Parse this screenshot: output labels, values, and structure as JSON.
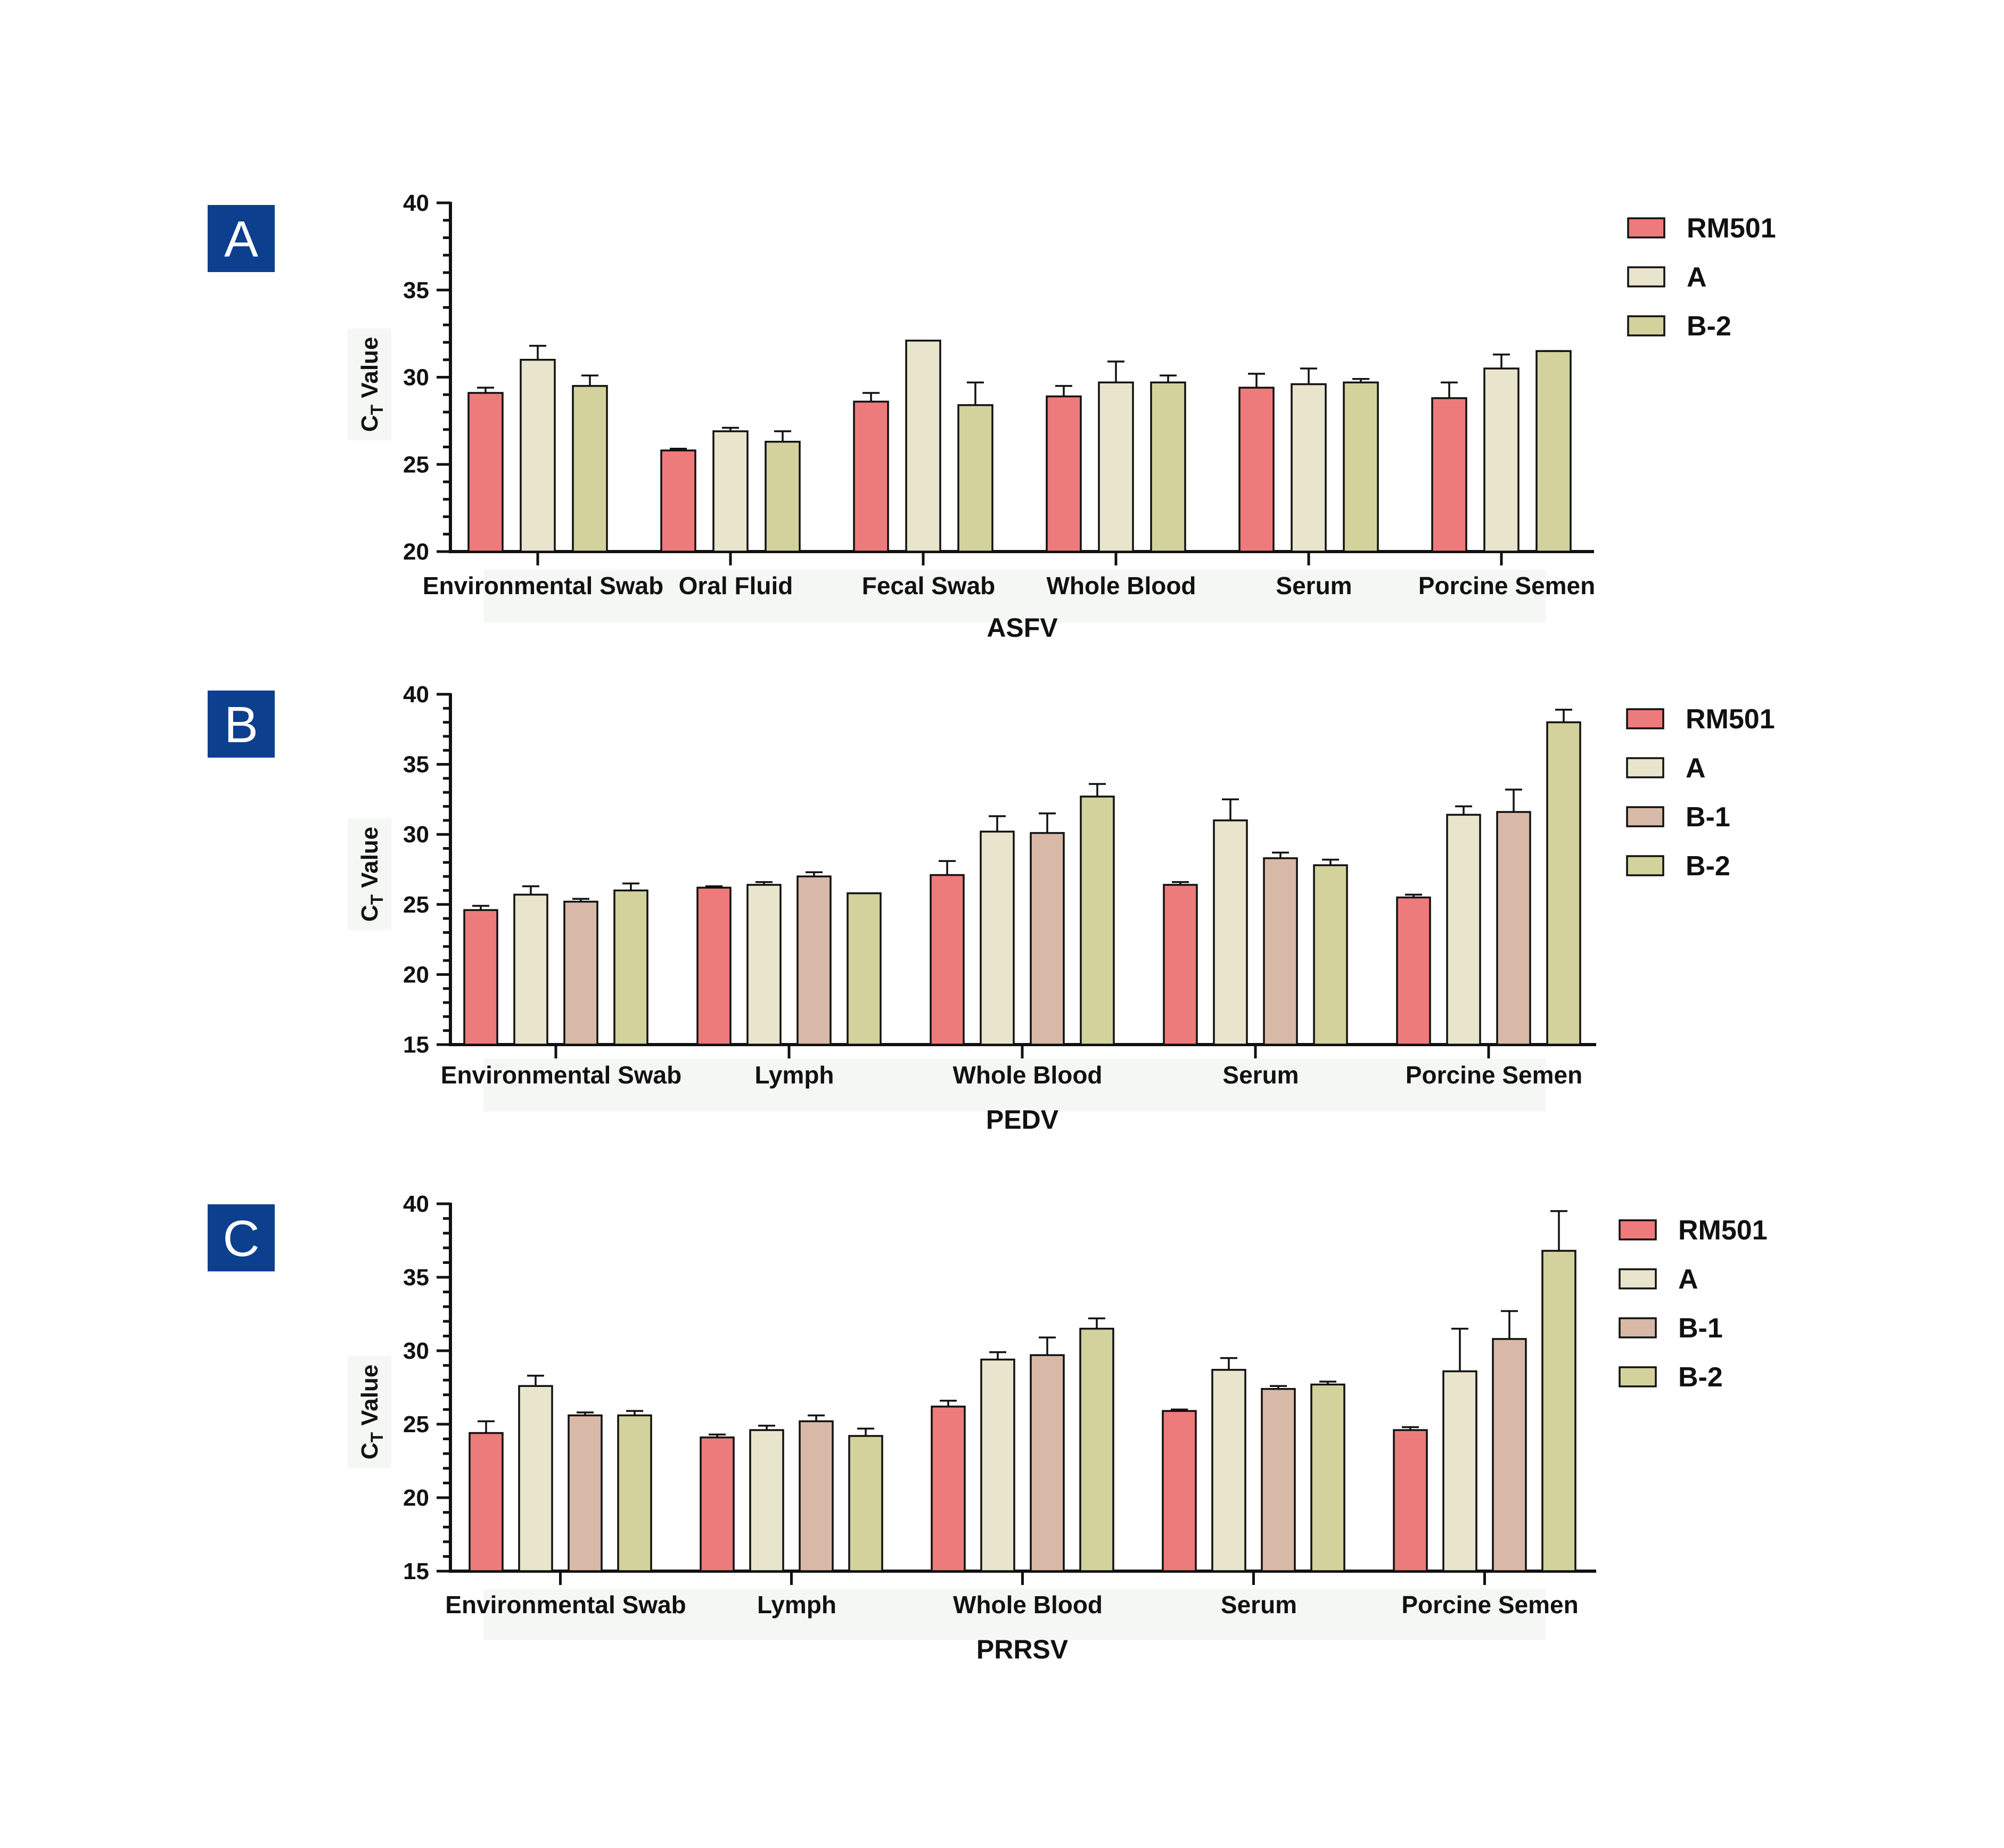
{
  "colors": {
    "RM501": "#ee7b7b",
    "A": "#e9e4cc",
    "B-1": "#d8b9a7",
    "B-2": "#d3d29c",
    "panel_badge": "#0d3f8f",
    "stroke": "#111111"
  },
  "ylabel_main": "C",
  "ylabel_sub": "T",
  "ylabel_rest": " Value",
  "chart_data": [
    {
      "type": "bar",
      "panel": "A",
      "xlabel": "ASFV",
      "ylim": [
        20,
        40
      ],
      "yticks": [
        "20",
        "25",
        "30",
        "35",
        "40"
      ],
      "categories": [
        "Environmental Swab",
        "Oral Fluid",
        "Fecal Swab",
        "Whole Blood",
        "Serum",
        "Porcine Semen"
      ],
      "series": [
        {
          "name": "RM501",
          "values": [
            29.1,
            25.8,
            28.6,
            28.9,
            29.4,
            28.8
          ],
          "errors": [
            0.3,
            0.1,
            0.5,
            0.6,
            0.8,
            0.9
          ]
        },
        {
          "name": "A",
          "values": [
            31.0,
            26.9,
            32.1,
            29.7,
            29.6,
            30.5
          ],
          "errors": [
            0.8,
            0.2,
            0.05,
            1.2,
            0.9,
            0.8
          ]
        },
        {
          "name": "B-2",
          "values": [
            29.5,
            26.3,
            28.4,
            29.7,
            29.7,
            31.5
          ],
          "errors": [
            0.6,
            0.6,
            1.3,
            0.4,
            0.2,
            0.05
          ]
        }
      ]
    },
    {
      "type": "bar",
      "panel": "B",
      "xlabel": "PEDV",
      "ylim": [
        15,
        40
      ],
      "yticks": [
        "15",
        "20",
        "25",
        "30",
        "35",
        "40"
      ],
      "categories": [
        "Environmental Swab",
        "Lymph",
        "Whole Blood",
        "Serum",
        "Porcine Semen"
      ],
      "series": [
        {
          "name": "RM501",
          "values": [
            24.6,
            26.2,
            27.1,
            26.4,
            25.5
          ],
          "errors": [
            0.3,
            0.1,
            1.0,
            0.2,
            0.2
          ]
        },
        {
          "name": "A",
          "values": [
            25.7,
            26.4,
            30.2,
            31.0,
            31.4
          ],
          "errors": [
            0.6,
            0.2,
            1.1,
            1.5,
            0.6
          ]
        },
        {
          "name": "B-1",
          "values": [
            25.2,
            27.0,
            30.1,
            28.3,
            31.6
          ],
          "errors": [
            0.2,
            0.3,
            1.4,
            0.4,
            1.6
          ]
        },
        {
          "name": "B-2",
          "values": [
            26.0,
            25.8,
            32.7,
            27.8,
            38.0
          ],
          "errors": [
            0.5,
            0.05,
            0.9,
            0.4,
            0.9
          ]
        }
      ]
    },
    {
      "type": "bar",
      "panel": "C",
      "xlabel": "PRRSV",
      "ylim": [
        15,
        40
      ],
      "yticks": [
        "15",
        "20",
        "25",
        "30",
        "35",
        "40"
      ],
      "categories": [
        "Environmental Swab",
        "Lymph",
        "Whole Blood",
        "Serum",
        "Porcine Semen"
      ],
      "series": [
        {
          "name": "RM501",
          "values": [
            24.4,
            24.1,
            26.2,
            25.9,
            24.6
          ],
          "errors": [
            0.8,
            0.2,
            0.4,
            0.1,
            0.2
          ]
        },
        {
          "name": "A",
          "values": [
            27.6,
            24.6,
            29.4,
            28.7,
            28.6
          ],
          "errors": [
            0.7,
            0.3,
            0.5,
            0.8,
            2.9
          ]
        },
        {
          "name": "B-1",
          "values": [
            25.6,
            25.2,
            29.7,
            27.4,
            30.8
          ],
          "errors": [
            0.2,
            0.4,
            1.2,
            0.2,
            1.9
          ]
        },
        {
          "name": "B-2",
          "values": [
            25.6,
            24.2,
            31.5,
            27.7,
            36.8
          ],
          "errors": [
            0.3,
            0.5,
            0.7,
            0.2,
            2.7
          ]
        }
      ]
    }
  ]
}
